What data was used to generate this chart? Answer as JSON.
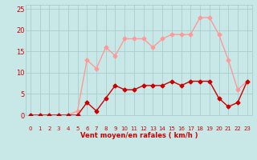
{
  "hours": [
    0,
    1,
    2,
    3,
    4,
    5,
    6,
    7,
    8,
    9,
    10,
    11,
    12,
    13,
    14,
    15,
    16,
    17,
    18,
    19,
    20,
    21,
    22,
    23
  ],
  "wind_mean": [
    0,
    0,
    0,
    0,
    0,
    0,
    3,
    1,
    4,
    7,
    6,
    6,
    7,
    7,
    7,
    8,
    7,
    8,
    8,
    8,
    4,
    2,
    3,
    8
  ],
  "wind_gust": [
    0,
    0,
    0,
    0,
    0,
    1,
    13,
    11,
    16,
    14,
    18,
    18,
    18,
    16,
    18,
    19,
    19,
    19,
    23,
    23,
    19,
    13,
    6,
    8
  ],
  "mean_color": "#cc0000",
  "gust_color": "#ff9999",
  "bg_color": "#c8e8e8",
  "grid_color": "#aacccc",
  "axis_color": "#cc0000",
  "xlabel": "Vent moyen/en rafales ( km/h )",
  "ylim": [
    0,
    26
  ],
  "xlim": [
    -0.5,
    23.5
  ],
  "yticks": [
    0,
    5,
    10,
    15,
    20,
    25
  ],
  "xticks": [
    0,
    1,
    2,
    3,
    4,
    5,
    6,
    7,
    8,
    9,
    10,
    11,
    12,
    13,
    14,
    15,
    16,
    17,
    18,
    19,
    20,
    21,
    22,
    23
  ],
  "marker": "D",
  "marker_size": 2.5,
  "linewidth": 1.0
}
